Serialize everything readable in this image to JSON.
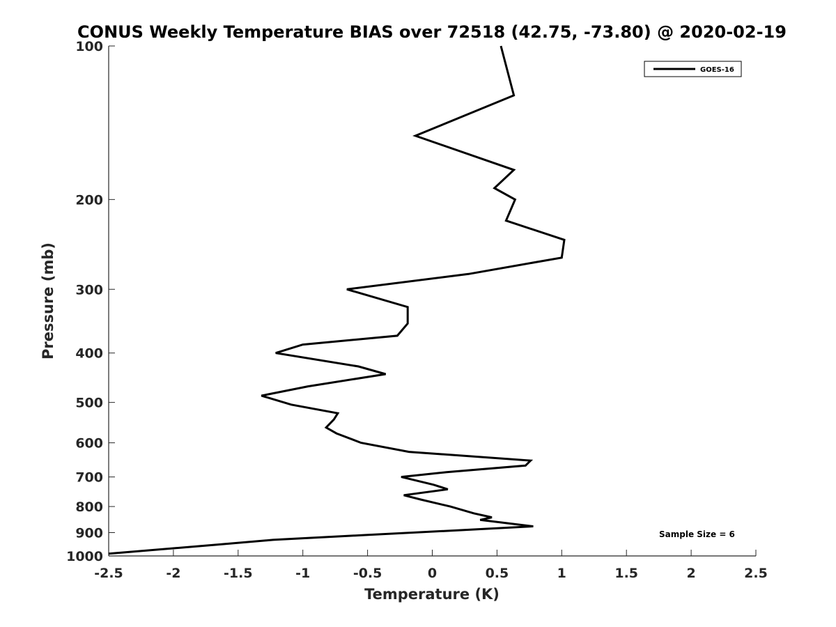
{
  "chart_data": {
    "type": "line",
    "title": "CONUS Weekly Temperature BIAS over 72518 (42.75, -73.80) @ 2020-02-19",
    "xlabel": "Temperature (K)",
    "ylabel": "Pressure (mb)",
    "xlim": [
      -2.5,
      2.5
    ],
    "ylim": [
      100,
      1000
    ],
    "y_scale": "log",
    "y_reversed": true,
    "x_ticks": [
      "-2.5",
      "-2",
      "-1.5",
      "-1",
      "-0.5",
      "0",
      "0.5",
      "1",
      "1.5",
      "2",
      "2.5"
    ],
    "x_tick_values": [
      -2.5,
      -2,
      -1.5,
      -1,
      -0.5,
      0,
      0.5,
      1,
      1.5,
      2,
      2.5
    ],
    "y_ticks": [
      "100",
      "200",
      "300",
      "400",
      "500",
      "600",
      "700",
      "800",
      "900",
      "1000"
    ],
    "y_tick_values": [
      100,
      200,
      300,
      400,
      500,
      600,
      700,
      800,
      900,
      1000
    ],
    "grid": false,
    "legend_position": "top-right",
    "annotation": "Sample Size = 6",
    "series": [
      {
        "name": "GOES-16",
        "color": "#000000",
        "points": [
          {
            "t": 0.53,
            "p": 100
          },
          {
            "t": 0.63,
            "p": 125
          },
          {
            "t": -0.13,
            "p": 150
          },
          {
            "t": 0.63,
            "p": 175
          },
          {
            "t": 0.48,
            "p": 190
          },
          {
            "t": 0.64,
            "p": 200
          },
          {
            "t": 0.57,
            "p": 220
          },
          {
            "t": 1.02,
            "p": 240
          },
          {
            "t": 1.0,
            "p": 260
          },
          {
            "t": 0.28,
            "p": 280
          },
          {
            "t": -0.66,
            "p": 300
          },
          {
            "t": -0.19,
            "p": 325
          },
          {
            "t": -0.19,
            "p": 350
          },
          {
            "t": -0.27,
            "p": 370
          },
          {
            "t": -1.0,
            "p": 385
          },
          {
            "t": -1.21,
            "p": 400
          },
          {
            "t": -0.57,
            "p": 425
          },
          {
            "t": -0.36,
            "p": 440
          },
          {
            "t": -0.96,
            "p": 465
          },
          {
            "t": -1.32,
            "p": 485
          },
          {
            "t": -1.09,
            "p": 505
          },
          {
            "t": -0.73,
            "p": 525
          },
          {
            "t": -0.76,
            "p": 540
          },
          {
            "t": -0.82,
            "p": 560
          },
          {
            "t": -0.74,
            "p": 575
          },
          {
            "t": -0.55,
            "p": 600
          },
          {
            "t": -0.18,
            "p": 625
          },
          {
            "t": 0.76,
            "p": 650
          },
          {
            "t": 0.72,
            "p": 665
          },
          {
            "t": 0.11,
            "p": 685
          },
          {
            "t": -0.24,
            "p": 700
          },
          {
            "t": 0.01,
            "p": 725
          },
          {
            "t": 0.12,
            "p": 740
          },
          {
            "t": -0.22,
            "p": 760
          },
          {
            "t": -0.09,
            "p": 775
          },
          {
            "t": 0.14,
            "p": 800
          },
          {
            "t": 0.32,
            "p": 825
          },
          {
            "t": 0.46,
            "p": 840
          },
          {
            "t": 0.37,
            "p": 850
          },
          {
            "t": 0.78,
            "p": 875
          },
          {
            "t": 0.22,
            "p": 890
          },
          {
            "t": -0.52,
            "p": 910
          },
          {
            "t": -1.23,
            "p": 930
          },
          {
            "t": -1.66,
            "p": 950
          },
          {
            "t": -2.5,
            "p": 990
          }
        ]
      }
    ]
  }
}
